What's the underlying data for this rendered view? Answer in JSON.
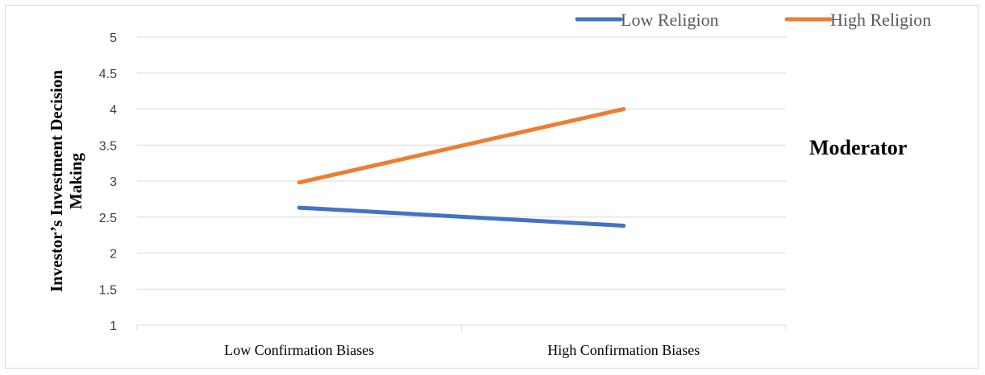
{
  "chart_data": {
    "type": "line",
    "categories": [
      "Low Confirmation Biases",
      "High Confirmation Biases"
    ],
    "series": [
      {
        "name": "Low Religion",
        "values": [
          2.63,
          2.38
        ],
        "color": "#4472c4"
      },
      {
        "name": "High Religion",
        "values": [
          2.98,
          4.0
        ],
        "color": "#ed7d31"
      }
    ],
    "ylabel": [
      "Investor’s Investment Decision",
      "Making"
    ],
    "ylim": [
      1,
      5
    ],
    "yticks": [
      "1",
      "1.5",
      "2",
      "2.5",
      "3",
      "3.5",
      "4",
      "4.5",
      "5"
    ],
    "grid": true,
    "legend_position": "top-right",
    "annotation": "Moderator"
  }
}
